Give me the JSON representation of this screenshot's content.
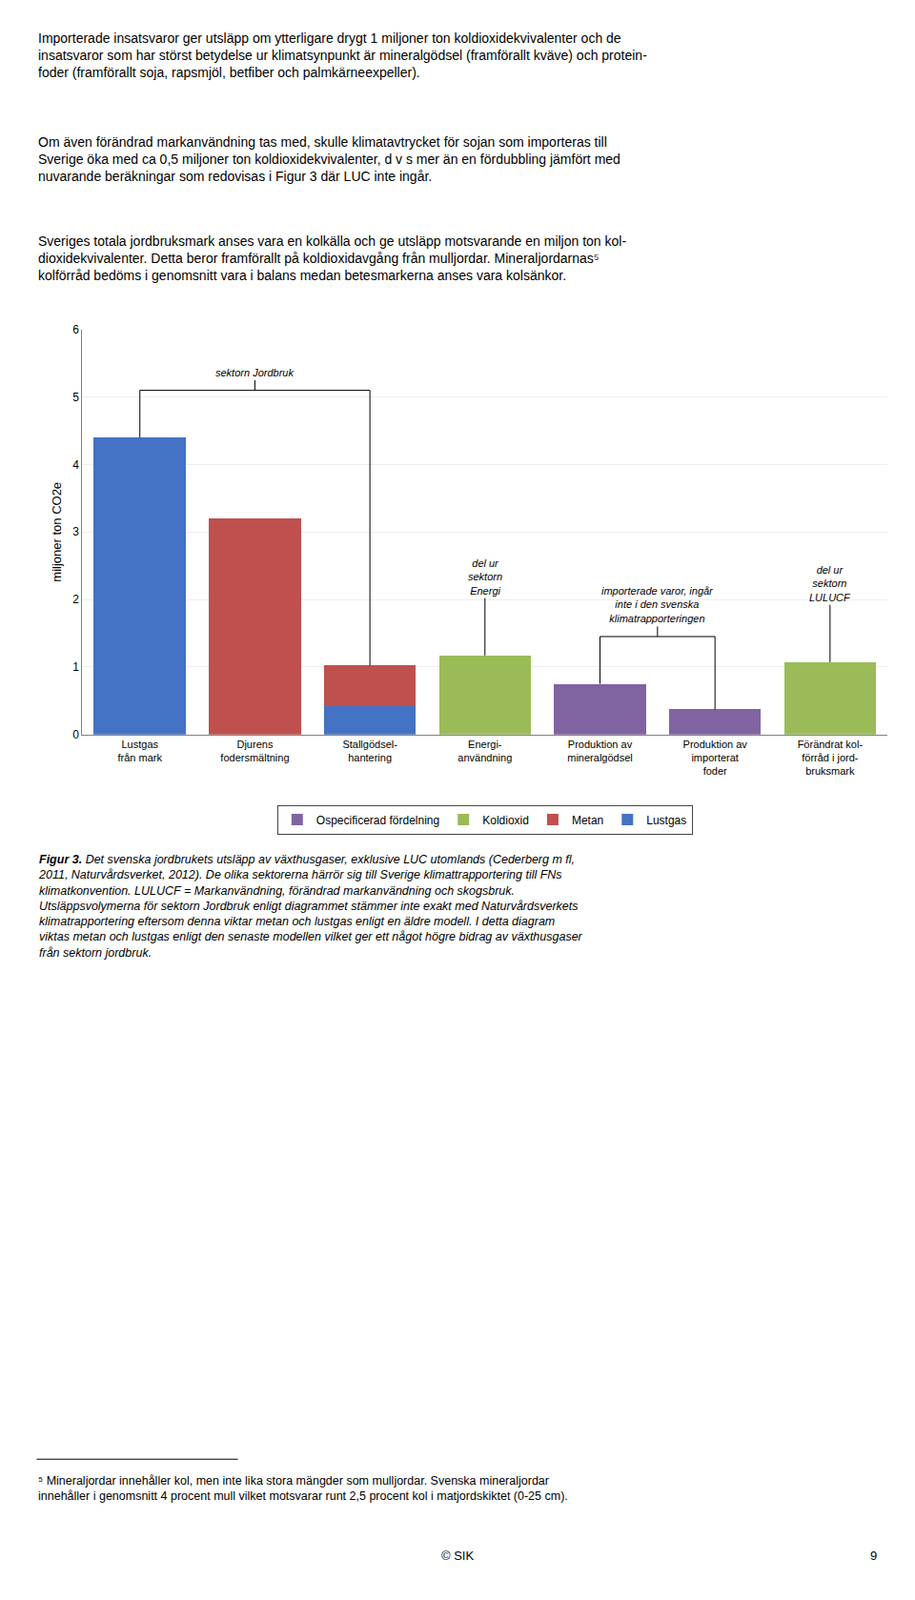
{
  "chart_data": {
    "type": "bar",
    "stacked": true,
    "categories": [
      "Lustgas\nfrån mark",
      "Djurens\nfodersmältning",
      "Stallgödsel-\nhantering",
      "Energi-\nanvändning",
      "Produktion av\nmineralgödsel",
      "Produktion av\nimporterat\nfoder",
      "Förändrat kol-\nförråd i jord-\nbruksmark"
    ],
    "series": [
      {
        "name": "Lustgas",
        "color": "#4472C4",
        "values": [
          4.4,
          0.0,
          0.42,
          0.0,
          0.0,
          0.0,
          0.0
        ]
      },
      {
        "name": "Metan",
        "color": "#C0504D",
        "values": [
          0.0,
          3.2,
          0.6,
          0.0,
          0.0,
          0.0,
          0.0
        ]
      },
      {
        "name": "Koldioxid",
        "color": "#9BBB59",
        "values": [
          0.0,
          0.0,
          0.0,
          1.17,
          0.0,
          0.0,
          1.07
        ]
      },
      {
        "name": "Ospecificerad fördelning",
        "color": "#8064A2",
        "values": [
          0.0,
          0.0,
          0.0,
          0.0,
          0.75,
          0.37,
          0.0
        ]
      }
    ],
    "ylabel": "miljoner ton CO2e",
    "ylim": [
      0,
      6
    ],
    "yticks": [
      0,
      1,
      2,
      3,
      4,
      5,
      6
    ],
    "grid": true,
    "legend": "bottom",
    "annotations": [
      {
        "text": "sektorn Jordbruk",
        "span": [
          0,
          2
        ]
      },
      {
        "text": "del ur\nsektorn\nEnergi",
        "span": [
          3,
          3
        ]
      },
      {
        "text": "importerade varor, ingår\ninte i den svenska\nklimatrapporteringen",
        "span": [
          4,
          5
        ]
      },
      {
        "text": "del ur\nsektorn\nLULUCF",
        "span": [
          6,
          6
        ]
      }
    ]
  },
  "paragraphs": [
    "Importerade insatsvaror ger utsläpp om ytterligare drygt 1 miljoner ton koldioxidekvivalenter och de\ninsatsvaror som har störst betydelse ur klimatsynpunkt är mineralgödsel (framförallt kväve) och protein-\nfoder (framförallt soja, rapsmjöl, betfiber och palmkärneexpeller).",
    "Om även förändrad markanvändning tas med, skulle klimatavtrycket för sojan som importeras till\nSverige öka med ca 0,5 miljoner ton koldioxidekvivalenter, d v s mer än en fördubbling jämfört med\nnuvarande beräkningar som redovisas i Figur 3 där LUC inte ingår.",
    "Sveriges totala jordbruksmark anses vara en kolkälla och ge utsläpp motsvarande en miljon ton kol-\ndioxidekvivalenter. Detta beror framförallt på koldioxidavgång från mulljordar. Mineraljordarnas⁵\nkolförråd bedöms i genomsnitt vara i balans medan betesmarkerna anses vara kolsänkor."
  ],
  "caption": {
    "bold": "Figur 3.",
    "text": " Det svenska jordbrukets utsläpp av växthusgaser, exklusive LUC utomlands (Cederberg m fl,\n2011, Naturvårdsverket, 2012). De olika sektorerna härrör sig till Sverige klimattrapportering till FNs\nklimatkonvention. LULUCF = Markanvändning, förändrad markanvändning och skogsbruk.\nUtsläppsvolymerna för sektorn Jordbruk enligt diagrammet stämmer inte exakt med Naturvårdsverkets\nklimatrapportering eftersom denna viktar metan och lustgas enligt en äldre modell. I detta diagram\nviktas metan och lustgas enligt den senaste modellen vilket ger ett något högre bidrag av växthusgaser\nfrån sektorn jordbruk."
  },
  "footnote": "⁵ Mineraljordar innehåller kol, men inte lika stora mängder som mulljordar. Svenska mineraljordar\ninnehåller i genomsnitt 4 procent mull vilket motsvarar runt 2,5 procent kol i matjordskiktet (0-25 cm).",
  "footer": "© SIK",
  "page_number": "9"
}
